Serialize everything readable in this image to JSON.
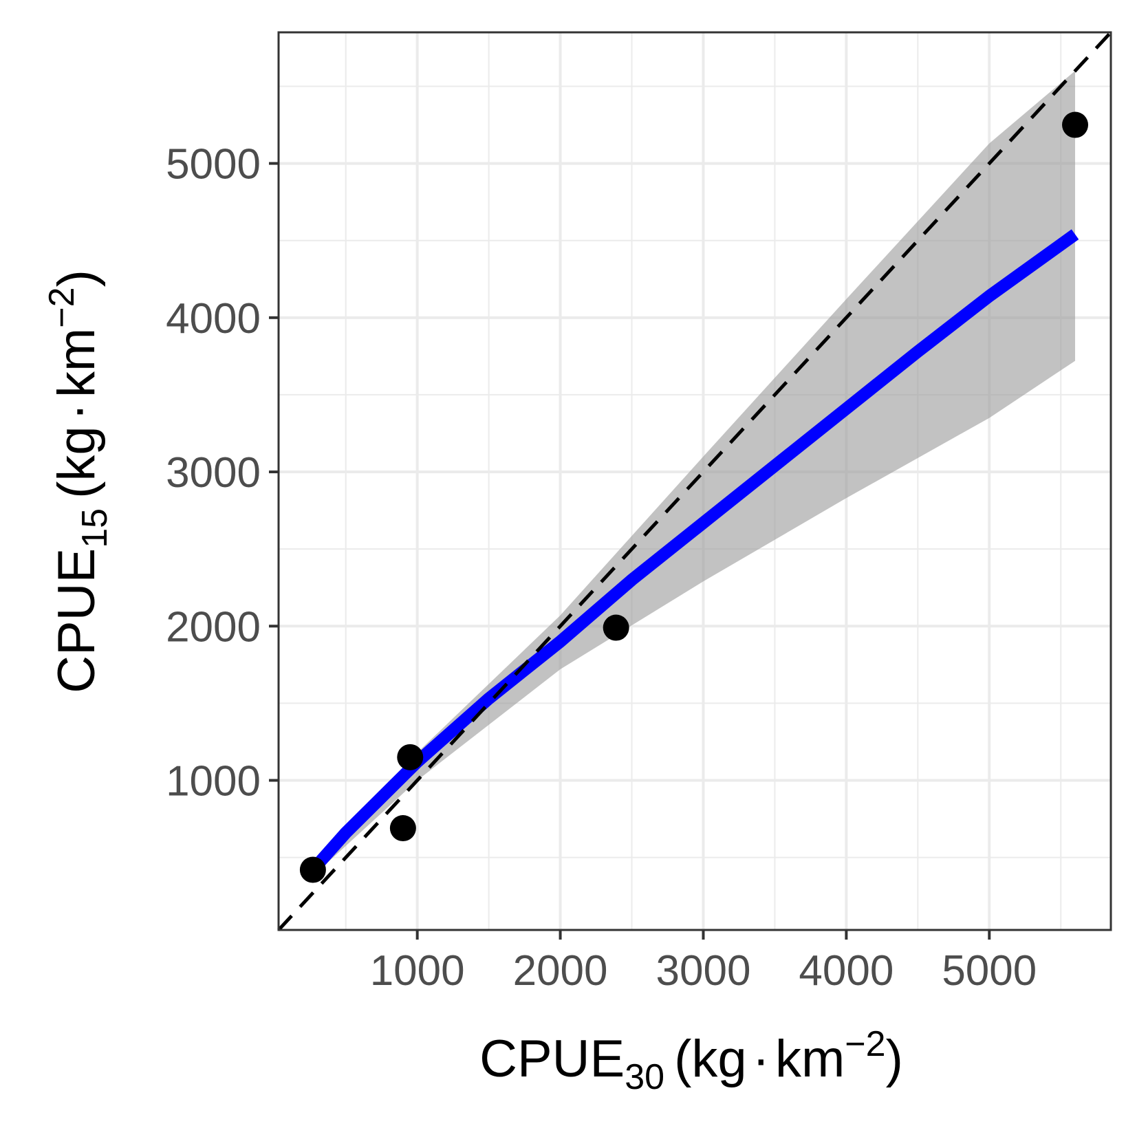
{
  "chart_data": {
    "type": "scatter",
    "title": "",
    "xlabel": {
      "prefix": "CPUE",
      "subscript": "30",
      "unit_open": "(kg",
      "unit_dot": "·",
      "unit_km": "km",
      "superscript": "−2",
      "unit_close": ")"
    },
    "ylabel": {
      "prefix": "CPUE",
      "subscript": "15",
      "unit_open": "(kg",
      "unit_dot": "·",
      "unit_km": "km",
      "superscript": "−2",
      "unit_close": ")"
    },
    "xlim": [
      30,
      5850
    ],
    "ylim": [
      30,
      5850
    ],
    "x_ticks": [
      1000,
      2000,
      3000,
      4000,
      5000
    ],
    "x_tick_labels": [
      "1000",
      "2000",
      "3000",
      "4000",
      "5000"
    ],
    "y_ticks": [
      1000,
      2000,
      3000,
      4000,
      5000
    ],
    "y_tick_labels": [
      "1000",
      "2000",
      "3000",
      "4000",
      "5000"
    ],
    "minor_x": [
      500,
      1500,
      2500,
      3500,
      4500,
      5500
    ],
    "minor_y": [
      500,
      1500,
      2500,
      3500,
      4500,
      5500
    ],
    "grid": true,
    "points": [
      {
        "x": 270,
        "y": 420
      },
      {
        "x": 900,
        "y": 690
      },
      {
        "x": 950,
        "y": 1150
      },
      {
        "x": 2390,
        "y": 1990
      },
      {
        "x": 5600,
        "y": 5250
      }
    ],
    "fit_line": {
      "name": "fit",
      "color": "#0000ff",
      "x": [
        270,
        500,
        1000,
        1500,
        2000,
        2500,
        3000,
        3500,
        4000,
        4500,
        5000,
        5600
      ],
      "y": [
        420,
        660,
        1120,
        1530,
        1900,
        2300,
        2670,
        3040,
        3410,
        3780,
        4140,
        4540
      ]
    },
    "confidence_band": {
      "color": "#999999",
      "x": [
        270,
        1000,
        2000,
        3000,
        4000,
        5000,
        5600
      ],
      "upper": [
        450,
        1180,
        2070,
        3100,
        4120,
        5130,
        5600
      ],
      "lower": [
        380,
        1000,
        1720,
        2290,
        2830,
        3350,
        3720
      ]
    },
    "reference_line": {
      "name": "1:1",
      "style": "dashed",
      "color": "#000000",
      "x": [
        30,
        5850
      ],
      "y": [
        30,
        5850
      ]
    }
  }
}
